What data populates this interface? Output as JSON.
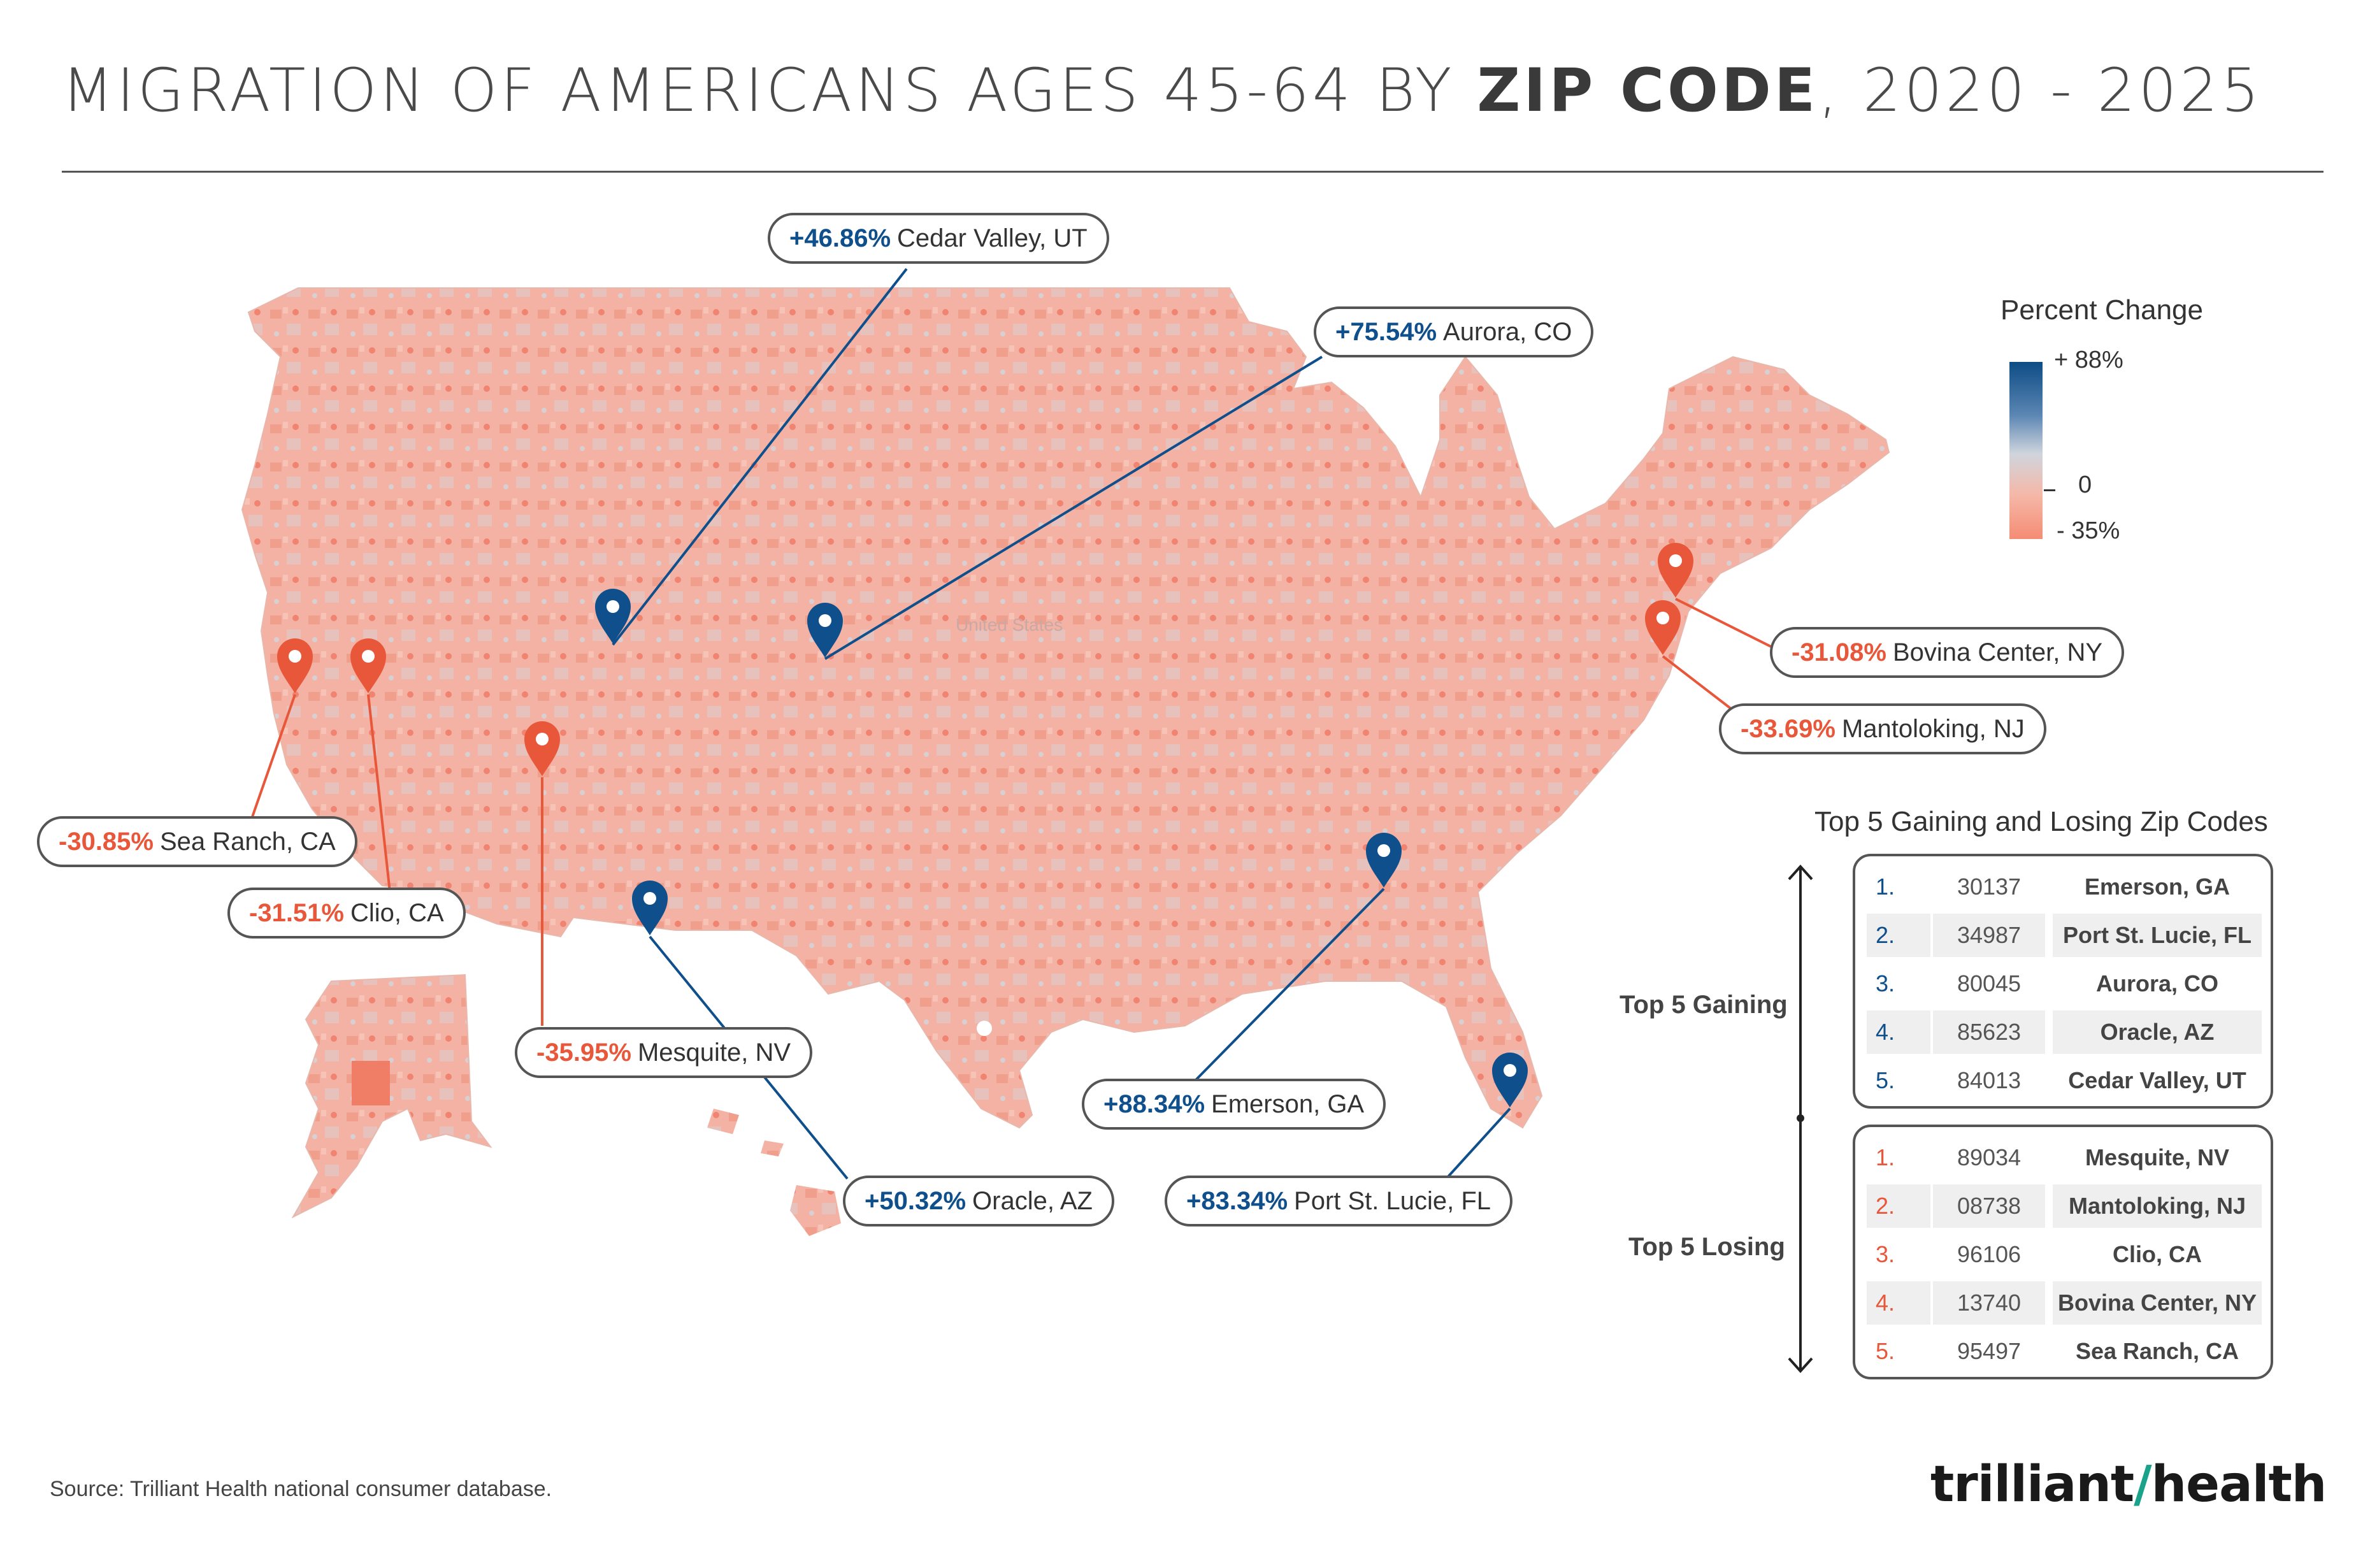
{
  "title": {
    "part1": "MIGRATION OF AMERICANS AGES 45-64 BY ",
    "bold": "ZIP CODE",
    "part2": ", 2020 - 2025"
  },
  "legend": {
    "title": "Percent Change",
    "max_label": "+ 88%",
    "mid_label": "0",
    "min_label": "- 35%",
    "colors": {
      "positive": "#0d4c85",
      "neutral": "#d0d5dd",
      "negative": "#f58c74"
    }
  },
  "callouts": [
    {
      "id": "cedar-valley",
      "pct": "+46.86%",
      "place": "Cedar Valley, UT",
      "sign": "positive"
    },
    {
      "id": "aurora",
      "pct": "+75.54%",
      "place": "Aurora, CO",
      "sign": "positive"
    },
    {
      "id": "bovina",
      "pct": "-31.08%",
      "place": "Bovina Center, NY",
      "sign": "negative"
    },
    {
      "id": "mantoloking",
      "pct": "-33.69%",
      "place": "Mantoloking, NJ",
      "sign": "negative"
    },
    {
      "id": "sea-ranch",
      "pct": "-30.85%",
      "place": "Sea Ranch, CA",
      "sign": "negative"
    },
    {
      "id": "clio",
      "pct": "-31.51%",
      "place": "Clio, CA",
      "sign": "negative"
    },
    {
      "id": "mesquite",
      "pct": "-35.95%",
      "place": "Mesquite, NV",
      "sign": "negative"
    },
    {
      "id": "emerson",
      "pct": "+88.34%",
      "place": "Emerson, GA",
      "sign": "positive"
    },
    {
      "id": "oracle",
      "pct": "+50.32%",
      "place": "Oracle, AZ",
      "sign": "positive"
    },
    {
      "id": "port-st-lucie",
      "pct": "+83.34%",
      "place": "Port St. Lucie, FL",
      "sign": "positive"
    }
  ],
  "table": {
    "title": "Top 5 Gaining and Losing Zip Codes",
    "gaining_label": "Top 5 Gaining",
    "losing_label": "Top 5 Losing",
    "gaining": [
      {
        "rank": "1.",
        "zip": "30137",
        "city": "Emerson, GA"
      },
      {
        "rank": "2.",
        "zip": "34987",
        "city": "Port St. Lucie, FL"
      },
      {
        "rank": "3.",
        "zip": "80045",
        "city": "Aurora, CO"
      },
      {
        "rank": "4.",
        "zip": "85623",
        "city": "Oracle, AZ"
      },
      {
        "rank": "5.",
        "zip": "84013",
        "city": "Cedar Valley, UT"
      }
    ],
    "losing": [
      {
        "rank": "1.",
        "zip": "89034",
        "city": "Mesquite, NV"
      },
      {
        "rank": "2.",
        "zip": "08738",
        "city": "Mantoloking, NJ"
      },
      {
        "rank": "3.",
        "zip": "96106",
        "city": "Clio, CA"
      },
      {
        "rank": "4.",
        "zip": "13740",
        "city": "Bovina Center, NY"
      },
      {
        "rank": "5.",
        "zip": "95497",
        "city": "Sea Ranch, CA"
      }
    ]
  },
  "map_labels": {
    "country": "United States"
  },
  "source": "Source: Trilliant Health national consumer database.",
  "logo": {
    "part1": "trilliant",
    "part2": "health"
  }
}
